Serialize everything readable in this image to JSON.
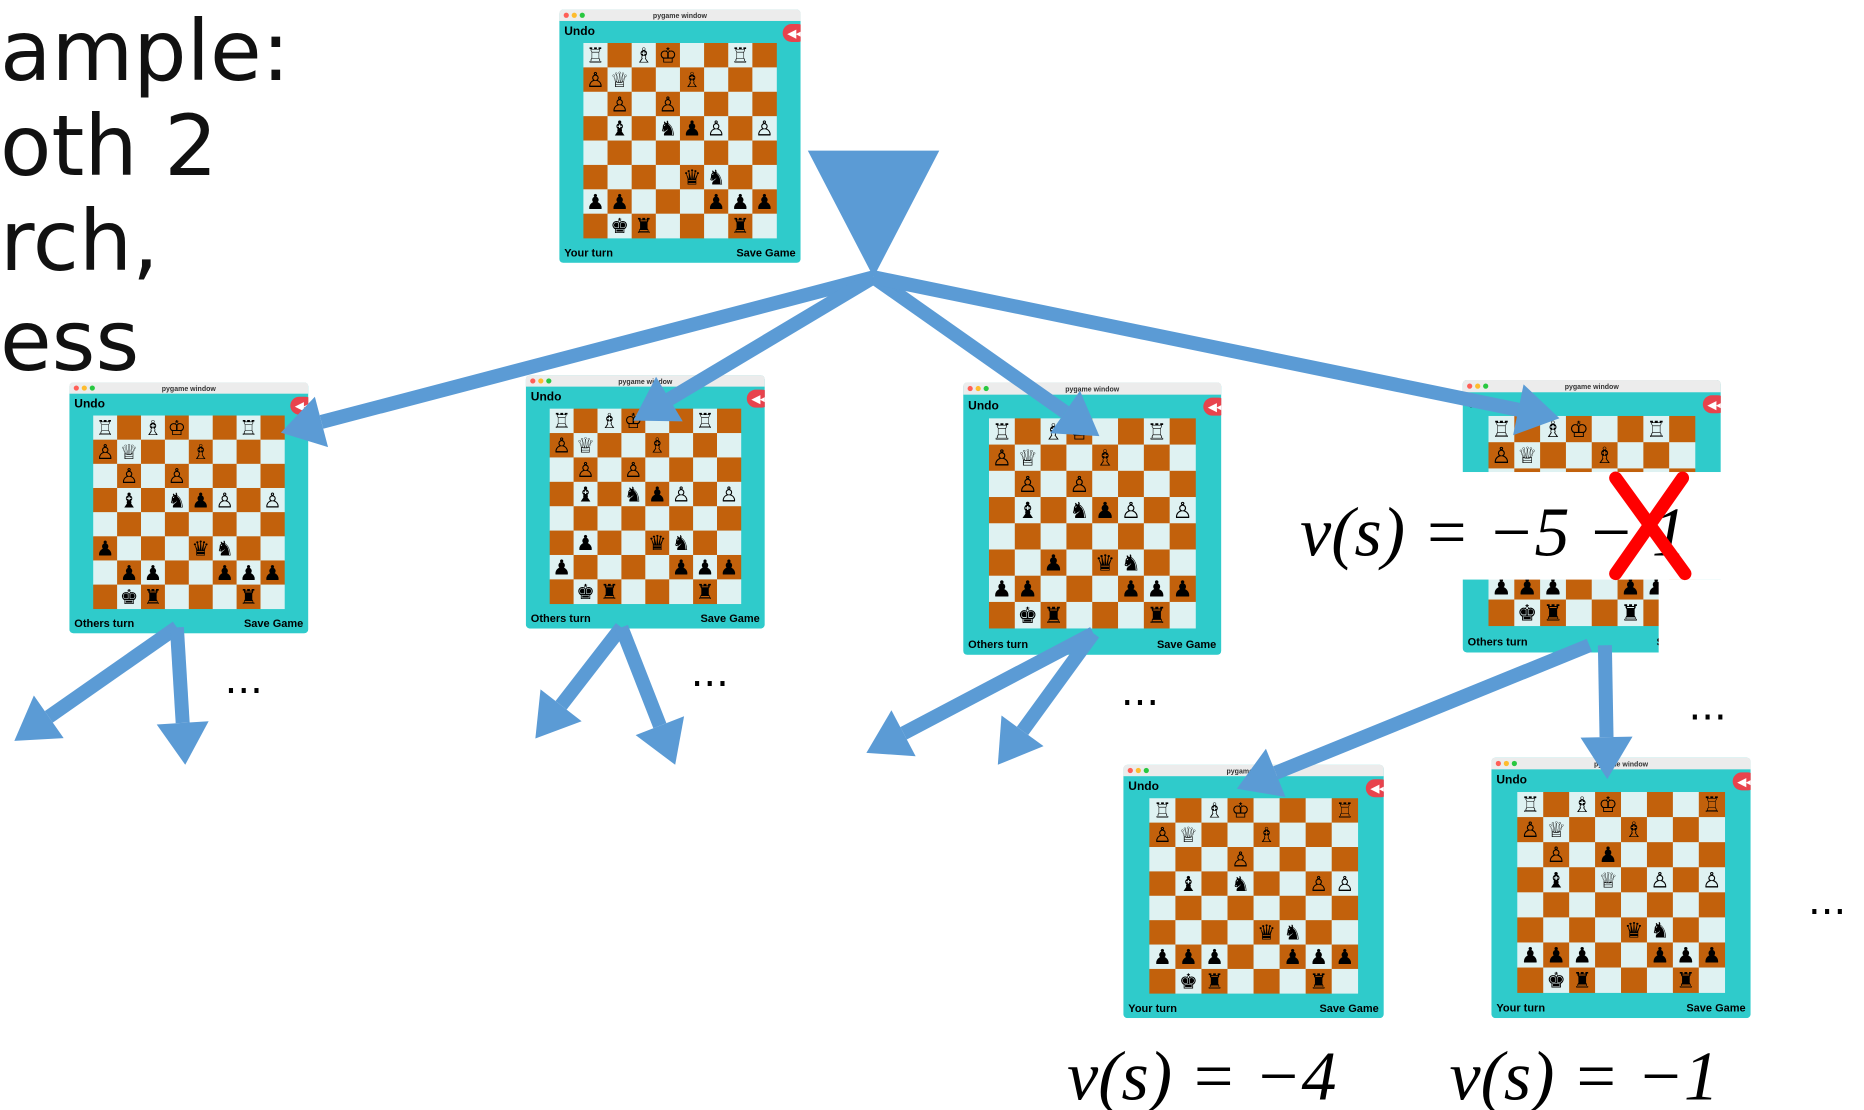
{
  "slide_text": [
    "ample:",
    "oth 2",
    "rch,",
    "ess"
  ],
  "windows": [
    {
      "title": "pygame window",
      "undo": "Undo",
      "status": "Your turn",
      "save": "Save Game",
      "board": [
        [
          "♖",
          null,
          "♗",
          "♔",
          null,
          null,
          "♖",
          null
        ],
        [
          "♙",
          "♕",
          null,
          null,
          "♗",
          null,
          null,
          null
        ],
        [
          null,
          "♙",
          null,
          "♙",
          null,
          null,
          null,
          null
        ],
        [
          null,
          "♝",
          null,
          "♞",
          "♟",
          "♙",
          null,
          "♙"
        ],
        [
          null,
          null,
          null,
          null,
          null,
          null,
          null,
          null
        ],
        [
          null,
          null,
          null,
          null,
          "♛",
          "♞",
          null,
          null
        ],
        [
          "♟",
          "♟",
          null,
          null,
          null,
          "♟",
          "♟",
          "♟"
        ],
        [
          null,
          "♚",
          "♜",
          null,
          null,
          null,
          "♜",
          null
        ]
      ]
    },
    {
      "title": "pygame window",
      "undo": "Undo",
      "status": "Others turn",
      "save": "Save Game",
      "board": [
        [
          "♖",
          null,
          "♗",
          "♔",
          null,
          null,
          "♖",
          null
        ],
        [
          "♙",
          "♕",
          null,
          null,
          "♗",
          null,
          null,
          null
        ],
        [
          null,
          "♙",
          null,
          "♙",
          null,
          null,
          null,
          null
        ],
        [
          null,
          "♝",
          null,
          "♞",
          "♟",
          "♙",
          null,
          "♙"
        ],
        [
          null,
          null,
          null,
          null,
          null,
          null,
          null,
          null
        ],
        [
          "♟",
          null,
          null,
          null,
          "♛",
          "♞",
          null,
          null
        ],
        [
          null,
          "♟",
          "♟",
          null,
          null,
          "♟",
          "♟",
          "♟"
        ],
        [
          null,
          "♚",
          "♜",
          null,
          null,
          null,
          "♜",
          null
        ]
      ]
    },
    {
      "title": "pygame window",
      "undo": "Undo",
      "status": "Others turn",
      "save": "Save Game",
      "board": [
        [
          "♖",
          null,
          "♗",
          "♔",
          null,
          null,
          "♖",
          null
        ],
        [
          "♙",
          "♕",
          null,
          null,
          "♗",
          null,
          null,
          null
        ],
        [
          null,
          "♙",
          null,
          "♙",
          null,
          null,
          null,
          null
        ],
        [
          null,
          "♝",
          null,
          "♞",
          "♟",
          "♙",
          null,
          "♙"
        ],
        [
          null,
          null,
          null,
          null,
          null,
          null,
          null,
          null
        ],
        [
          null,
          "♟",
          null,
          null,
          "♛",
          "♞",
          null,
          null
        ],
        [
          "♟",
          null,
          null,
          null,
          null,
          "♟",
          "♟",
          "♟"
        ],
        [
          null,
          "♚",
          "♜",
          null,
          null,
          null,
          "♜",
          null
        ]
      ]
    },
    {
      "title": "pygame window",
      "undo": "Undo",
      "status": "Others turn",
      "save": "Save Game",
      "board": [
        [
          "♖",
          null,
          "♗",
          "♔",
          null,
          null,
          "♖",
          null
        ],
        [
          "♙",
          "♕",
          null,
          null,
          "♗",
          null,
          null,
          null
        ],
        [
          null,
          "♙",
          null,
          "♙",
          null,
          null,
          null,
          null
        ],
        [
          null,
          "♝",
          null,
          "♞",
          "♟",
          "♙",
          null,
          "♙"
        ],
        [
          null,
          null,
          null,
          null,
          null,
          null,
          null,
          null
        ],
        [
          null,
          null,
          "♟",
          null,
          "♛",
          "♞",
          null,
          null
        ],
        [
          "♟",
          "♟",
          null,
          null,
          null,
          "♟",
          "♟",
          "♟"
        ],
        [
          null,
          "♚",
          "♜",
          null,
          null,
          null,
          "♜",
          null
        ]
      ]
    },
    {
      "title": "pygame window",
      "undo": "Undo",
      "status": "Others turn",
      "save": "Save Game",
      "board": [
        [
          "♖",
          null,
          "♗",
          "♔",
          null,
          null,
          "♖",
          null
        ],
        [
          "♙",
          "♕",
          null,
          null,
          "♗",
          null,
          null,
          null
        ],
        [
          null,
          "♙",
          null,
          "♙",
          null,
          null,
          null,
          null
        ],
        [
          null,
          "♝",
          null,
          "♞",
          "♟",
          "♙",
          null,
          "♙"
        ],
        [
          null,
          null,
          null,
          null,
          null,
          null,
          null,
          null
        ],
        [
          null,
          null,
          null,
          null,
          "♛",
          "♞",
          null,
          null
        ],
        [
          "♟",
          "♟",
          "♟",
          null,
          null,
          "♟",
          "♟",
          "♟"
        ],
        [
          null,
          "♚",
          "♜",
          null,
          null,
          "♜",
          null,
          null
        ]
      ]
    },
    {
      "title": "pygame window",
      "undo": "Undo",
      "status": "Your turn",
      "save": "Save Game",
      "board": [
        [
          "♖",
          null,
          "♗",
          "♔",
          null,
          null,
          null,
          "♖"
        ],
        [
          "♙",
          "♕",
          null,
          null,
          "♗",
          null,
          null,
          null
        ],
        [
          null,
          null,
          null,
          "♙",
          null,
          null,
          null,
          null
        ],
        [
          null,
          "♝",
          null,
          "♞",
          null,
          null,
          "♙",
          "♙"
        ],
        [
          null,
          null,
          null,
          null,
          null,
          null,
          null,
          null
        ],
        [
          null,
          null,
          null,
          null,
          "♛",
          "♞",
          null,
          null
        ],
        [
          "♟",
          "♟",
          "♟",
          null,
          null,
          "♟",
          "♟",
          "♟"
        ],
        [
          null,
          "♚",
          "♜",
          null,
          null,
          null,
          "♜",
          null
        ]
      ]
    },
    {
      "title": "pygame window",
      "undo": "Undo",
      "status": "Your turn",
      "save": "Save Game",
      "board": [
        [
          "♖",
          null,
          "♗",
          "♔",
          null,
          null,
          null,
          "♖"
        ],
        [
          "♙",
          "♕",
          null,
          null,
          "♗",
          null,
          null,
          null
        ],
        [
          null,
          "♙",
          null,
          "♟",
          null,
          null,
          null,
          null
        ],
        [
          null,
          "♝",
          null,
          "♕",
          null,
          "♙",
          null,
          "♙"
        ],
        [
          null,
          null,
          null,
          null,
          null,
          null,
          null,
          null
        ],
        [
          null,
          null,
          null,
          null,
          "♛",
          "♞",
          null,
          null
        ],
        [
          "♟",
          "♟",
          "♟",
          null,
          null,
          "♟",
          "♟",
          "♟"
        ],
        [
          null,
          "♚",
          "♜",
          null,
          null,
          null,
          "♜",
          null
        ]
      ]
    }
  ],
  "value_labels": [
    "v(s) = −5 − 1",
    "v(s) = −4",
    "v(s) = −1"
  ],
  "ellipses": [
    "...",
    "...",
    "...",
    "...",
    "..."
  ]
}
